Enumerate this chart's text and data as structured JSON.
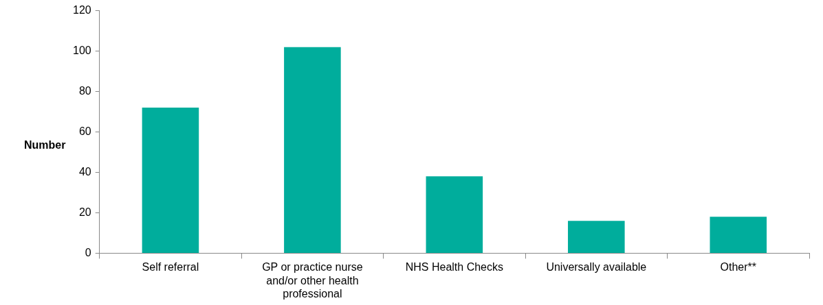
{
  "chart_data": {
    "type": "bar",
    "ylabel": "Number",
    "categories": [
      "Self referral",
      "GP or practice nurse and/or other health professional",
      "NHS Health Checks",
      "Universally available",
      "Other**"
    ],
    "values": [
      72,
      102,
      38,
      16,
      18
    ],
    "color": "#00ad9c",
    "ylim": [
      0,
      120
    ],
    "yticks": [
      0,
      20,
      40,
      60,
      80,
      100,
      120
    ],
    "grid": false,
    "legend": false
  }
}
